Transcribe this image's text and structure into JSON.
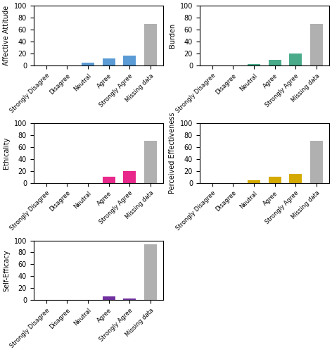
{
  "chart_data": [
    {
      "type": "bar",
      "ylabel": "Affective Attitude",
      "categories": [
        "Strongly Disagree",
        "Disagree",
        "Neutral",
        "Agree",
        "Strongly Agree",
        "Missing data"
      ],
      "values": [
        0,
        0,
        5,
        12,
        17,
        70
      ],
      "colors": [
        "#5b9bd5",
        "#5b9bd5",
        "#5b9bd5",
        "#5b9bd5",
        "#5b9bd5",
        "#b0b0b0"
      ],
      "ylim": [
        0,
        100
      ],
      "yticks": [
        0,
        20,
        40,
        60,
        80,
        100
      ]
    },
    {
      "type": "bar",
      "ylabel": "Burden",
      "categories": [
        "Strongly Disagree",
        "Disagree",
        "Neutral",
        "Agree",
        "Strongly Agree",
        "Missing data"
      ],
      "values": [
        0,
        0,
        2,
        10,
        20,
        70
      ],
      "colors": [
        "#4aab8a",
        "#4aab8a",
        "#4aab8a",
        "#4aab8a",
        "#4aab8a",
        "#b0b0b0"
      ],
      "ylim": [
        0,
        100
      ],
      "yticks": [
        0,
        20,
        40,
        60,
        80,
        100
      ]
    },
    {
      "type": "bar",
      "ylabel": "Ethicality",
      "categories": [
        "Strongly Disagree",
        "Disagree",
        "Neutral",
        "Agree",
        "Strongly Agree",
        "Missing data"
      ],
      "values": [
        0,
        0,
        0,
        10,
        20,
        70
      ],
      "colors": [
        "#e8288a",
        "#e8288a",
        "#e8288a",
        "#e8288a",
        "#e8288a",
        "#b0b0b0"
      ],
      "ylim": [
        0,
        100
      ],
      "yticks": [
        0,
        20,
        40,
        60,
        80,
        100
      ]
    },
    {
      "type": "bar",
      "ylabel": "Perceived Effectiveness",
      "categories": [
        "Strongly Disagree",
        "Disagree",
        "Neutral",
        "Agree",
        "Strongly Agree",
        "Missing data"
      ],
      "values": [
        0,
        0,
        5,
        10,
        15,
        70
      ],
      "colors": [
        "#d4aa00",
        "#d4aa00",
        "#d4aa00",
        "#d4aa00",
        "#d4aa00",
        "#b0b0b0"
      ],
      "ylim": [
        0,
        100
      ],
      "yticks": [
        0,
        20,
        40,
        60,
        80,
        100
      ]
    },
    {
      "type": "bar",
      "ylabel": "Self-Efficacy",
      "categories": [
        "Strongly Disagree",
        "Disagree",
        "Neutral",
        "Agree",
        "Strongly Agree",
        "Missing data"
      ],
      "values": [
        0,
        0,
        0,
        7,
        3,
        93
      ],
      "colors": [
        "#7030a0",
        "#7030a0",
        "#7030a0",
        "#7030a0",
        "#7030a0",
        "#b0b0b0"
      ],
      "ylim": [
        0,
        100
      ],
      "yticks": [
        0,
        20,
        40,
        60,
        80,
        100
      ]
    }
  ]
}
